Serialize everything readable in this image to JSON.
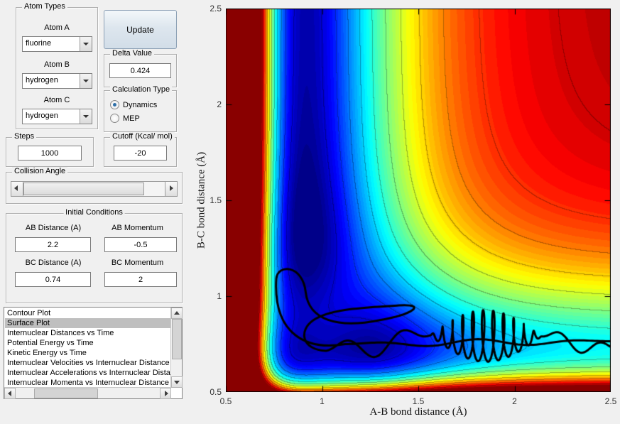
{
  "window": {
    "background": "#f0f0f0"
  },
  "atom_types": {
    "title": "Atom Types",
    "fields": [
      {
        "label": "Atom A",
        "value": "fluorine"
      },
      {
        "label": "Atom B",
        "value": "hydrogen"
      },
      {
        "label": "Atom C",
        "value": "hydrogen"
      }
    ]
  },
  "update_button": {
    "label": "Update"
  },
  "delta": {
    "title": "Delta Value",
    "value": "0.424"
  },
  "calculation_type": {
    "title": "Calculation Type",
    "options": [
      {
        "label": "Dynamics",
        "selected": true
      },
      {
        "label": "MEP",
        "selected": false
      }
    ]
  },
  "steps": {
    "title": "Steps",
    "value": "1000"
  },
  "cutoff": {
    "title": "Cutoff (Kcal/ mol)",
    "value": "-20"
  },
  "collision_angle": {
    "title": "Collision Angle"
  },
  "initial_conditions": {
    "title": "Initial Conditions",
    "fields": [
      {
        "label": "AB Distance (A)",
        "value": "2.2"
      },
      {
        "label": "AB Momentum",
        "value": "-0.5"
      },
      {
        "label": "BC Distance (A)",
        "value": "0.74"
      },
      {
        "label": "BC Momentum",
        "value": "2"
      }
    ]
  },
  "plot_list": {
    "selected_index": 1,
    "items": [
      "Contour Plot",
      "Surface Plot",
      "Internuclear Distances vs Time",
      "Potential Energy vs Time",
      "Kinetic Energy vs Time",
      "Internuclear Velocities vs Internuclear Distance",
      "Internuclear Accelerations vs Internuclear Distance",
      "Internuclear Momenta vs Internuclear Distance"
    ]
  },
  "chart_data": {
    "type": "filled-contour",
    "title": "",
    "xlabel": "A-B bond distance (Å)",
    "ylabel": "B-C bond distance (Å)",
    "xlim": [
      0.5,
      2.5
    ],
    "ylim": [
      0.5,
      2.5
    ],
    "xticks": [
      0.5,
      1,
      1.5,
      2,
      2.5
    ],
    "yticks": [
      0.5,
      1,
      1.5,
      2,
      2.5
    ],
    "grid": false,
    "legend": "none",
    "colormap": "jet",
    "description": "Potential energy surface for F + H2 with reactive-scattering trajectory overlay; deep (blue) vertical channel at A-B ~0.92 A (H-F product), shallower (cyan) horizontal channel at B-C ~0.74 A (H-H reactant), dark red repulsive walls at small distances and dissociation plateau at large distances",
    "surface_model": {
      "D1": 1.0,
      "a1": 3.0,
      "re1": 0.92,
      "D2": 0.62,
      "a2": 3.5,
      "re2": 0.74,
      "K": 0.62,
      "sx": 0.22,
      "sy": 0.28,
      "vmin": -1.05,
      "vmax": 0.05,
      "fill_levels": 56,
      "line_levels": 12
    },
    "trajectory": {
      "color": "#000000",
      "line_width": 3,
      "start_point": [
        2.2,
        0.74
      ],
      "segments": [
        {
          "type": "wave",
          "from": [
            2.5,
            0.765
          ],
          "to": [
            1.12,
            0.75
          ],
          "amp": 0.018,
          "cycles": 2.5,
          "xamp": 0
        },
        {
          "type": "cubic",
          "c1": [
            0.92,
            0.715
          ],
          "c2": [
            0.745,
            0.8
          ],
          "to": [
            0.762,
            1.09
          ]
        },
        {
          "type": "cubic",
          "c1": [
            0.768,
            1.17
          ],
          "c2": [
            0.9,
            1.165
          ],
          "to": [
            0.915,
            1.02
          ]
        },
        {
          "type": "cubic",
          "c1": [
            0.932,
            0.875
          ],
          "c2": [
            1.08,
            0.83
          ],
          "to": [
            1.3,
            0.875
          ]
        },
        {
          "type": "cubic",
          "c1": [
            1.47,
            0.905
          ],
          "c2": [
            1.55,
            0.96
          ],
          "to": [
            1.4,
            0.952
          ]
        },
        {
          "type": "cubic",
          "c1": [
            1.22,
            0.94
          ],
          "c2": [
            1.04,
            0.935
          ],
          "to": [
            0.955,
            0.875
          ]
        },
        {
          "type": "cubic",
          "c1": [
            0.875,
            0.82
          ],
          "c2": [
            0.895,
            0.72
          ],
          "to": [
            1.02,
            0.715
          ]
        },
        {
          "type": "wave",
          "from": [
            1.02,
            0.715
          ],
          "to": [
            1.56,
            0.795
          ],
          "amp": 0.07,
          "cycles": 1.6,
          "xamp": 0
        },
        {
          "type": "wave",
          "from": [
            1.56,
            0.795
          ],
          "to": [
            2.14,
            0.79
          ],
          "amp": 0.135,
          "cycles": 11,
          "xamp": 0.018
        },
        {
          "type": "wave",
          "from": [
            2.14,
            0.79
          ],
          "to": [
            2.5,
            0.735
          ],
          "amp": 0.055,
          "cycles": 1.3,
          "xamp": 0
        }
      ]
    }
  }
}
